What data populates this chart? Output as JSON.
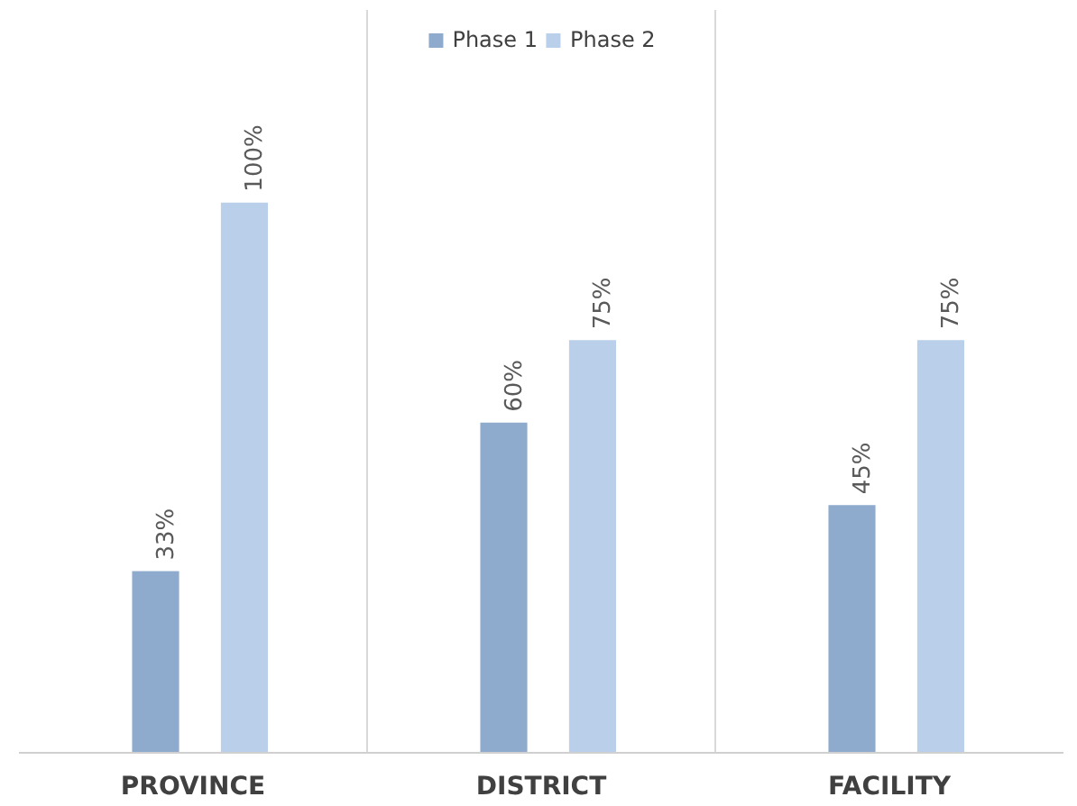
{
  "chart_data": {
    "type": "bar",
    "categories": [
      "PROVINCE",
      "DISTRICT",
      "FACILITY"
    ],
    "series": [
      {
        "name": "Phase 1",
        "color": "#8eaacc",
        "values": [
          33,
          60,
          45
        ],
        "value_labels": [
          "33%",
          "60%",
          "45%"
        ]
      },
      {
        "name": "Phase 2",
        "color": "#b9cfea",
        "values": [
          100,
          75,
          75
        ],
        "value_labels": [
          "100%",
          "75%",
          "75%"
        ]
      }
    ],
    "grid": "x",
    "legend": "top"
  }
}
